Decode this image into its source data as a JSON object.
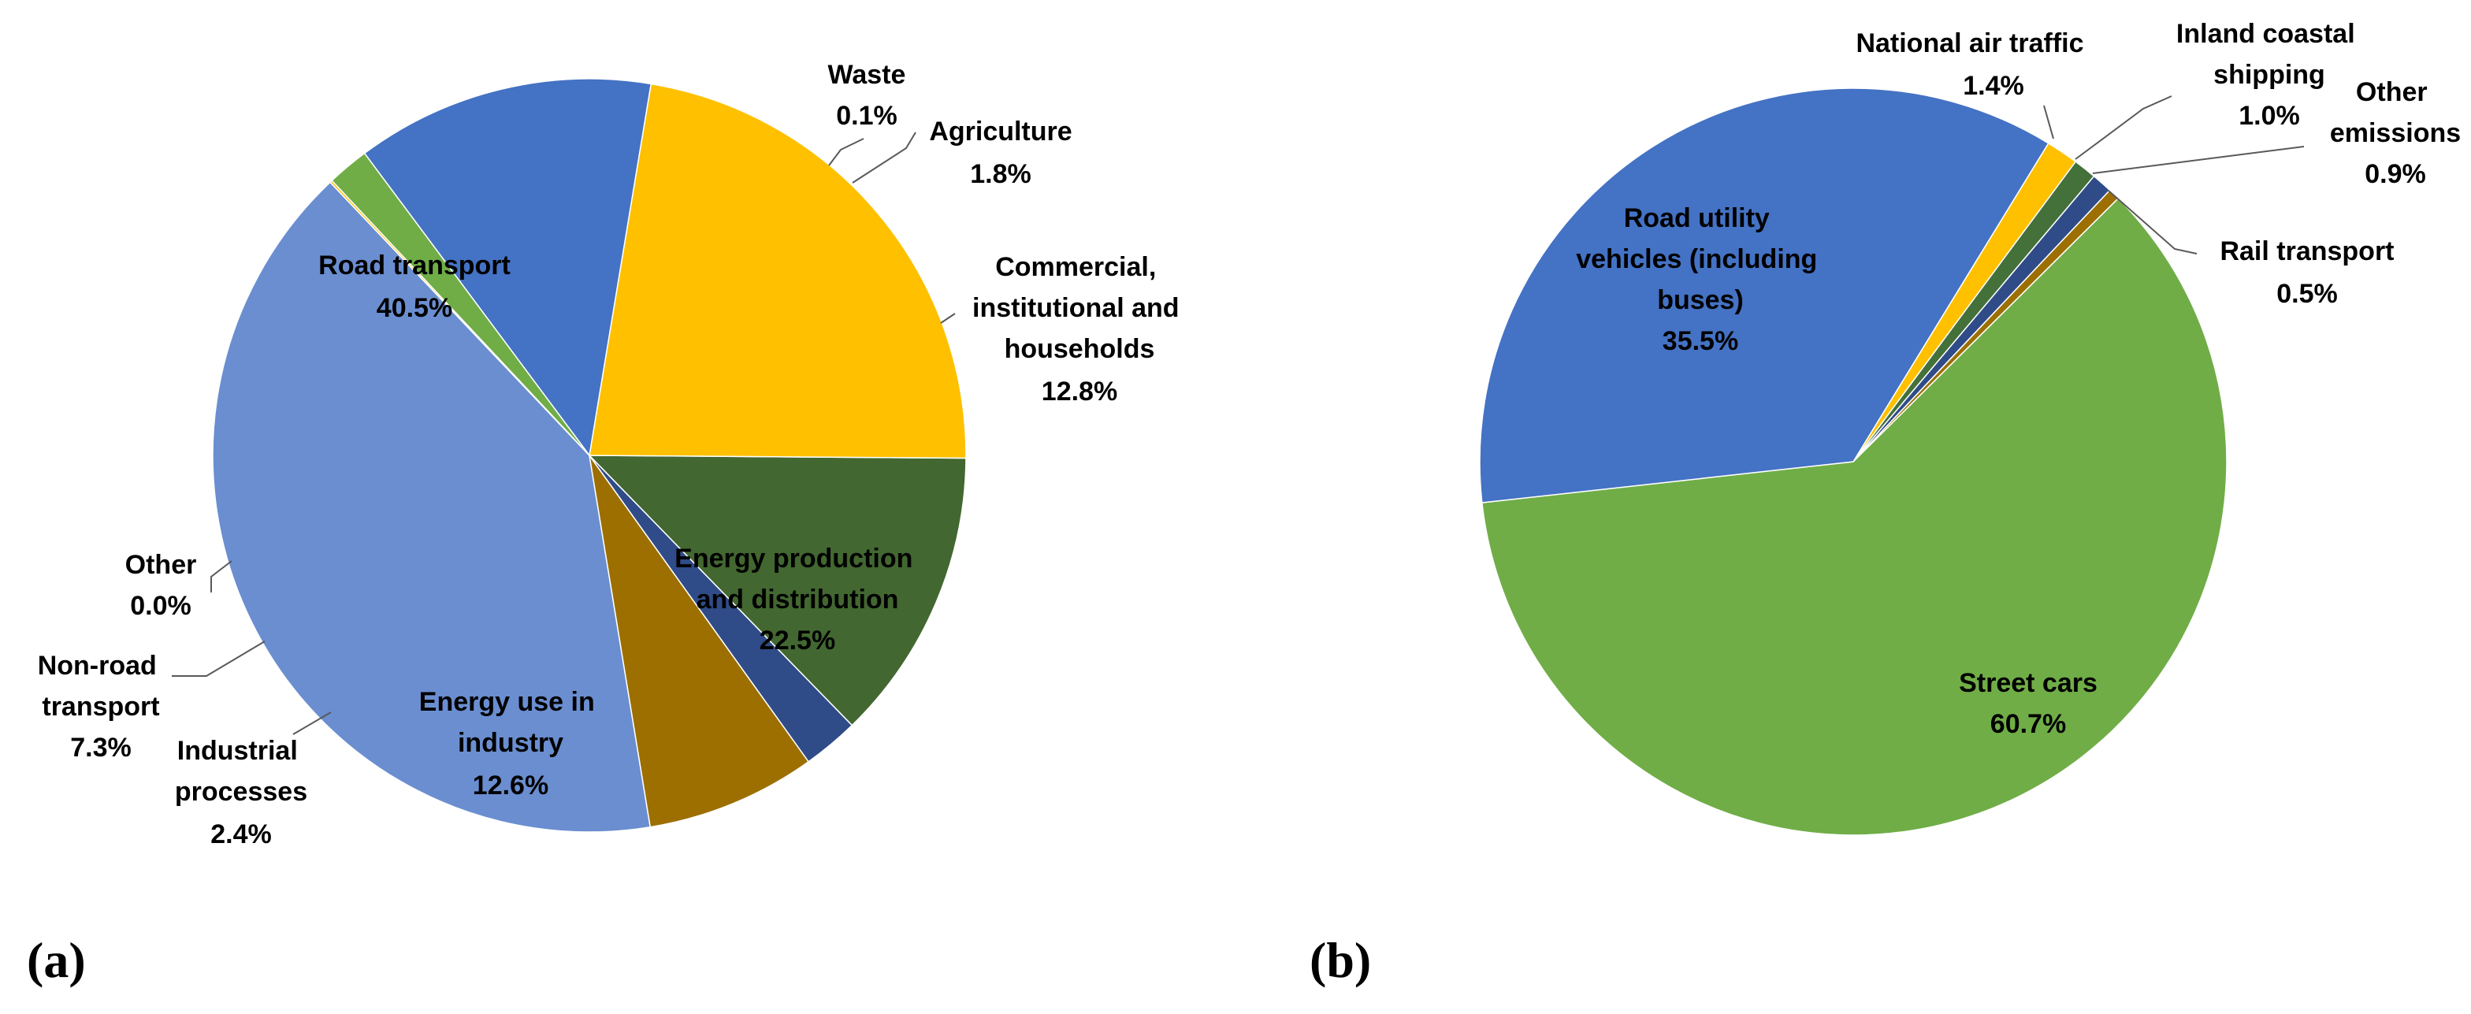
{
  "chart_data": [
    {
      "type": "pie",
      "panel_label": "(a)",
      "start_angle_deg": 133.5,
      "direction": "counterclockwise",
      "slices": [
        {
          "key": "road-transport",
          "label": "Road transport",
          "value": 40.5,
          "display": "40.5%",
          "color": "#6A8ED0"
        },
        {
          "key": "other",
          "label": "Other",
          "value": 0.0,
          "display": "0.0%",
          "color": "#8E7200"
        },
        {
          "key": "non-road-transport",
          "label": "Non-road transport",
          "value": 7.3,
          "display": "7.3%",
          "color": "#9C6F00"
        },
        {
          "key": "industrial-processes",
          "label": "Industrial processes",
          "value": 2.4,
          "display": "2.4%",
          "color": "#2F4C88"
        },
        {
          "key": "energy-use-industry",
          "label": "Energy use in industry",
          "value": 12.6,
          "display": "12.6%",
          "color": "#426730"
        },
        {
          "key": "energy-production",
          "label": "Energy production and distribution",
          "value": 22.5,
          "display": "22.5%",
          "color": "#FFC000"
        },
        {
          "key": "commercial",
          "label": "Commercial, institutional and households",
          "value": 12.8,
          "display": "12.8%",
          "color": "#4472C4"
        },
        {
          "key": "agriculture",
          "label": "Agriculture",
          "value": 1.8,
          "display": "1.8%",
          "color": "#70AD47"
        },
        {
          "key": "waste",
          "label": "Waste",
          "value": 0.1,
          "display": "0.1%",
          "color": "#FFC000"
        }
      ]
    },
    {
      "type": "pie",
      "panel_label": "(b)",
      "start_angle_deg": 58.5,
      "direction": "clockwise",
      "slices": [
        {
          "key": "national-air-traffic",
          "label": "National air traffic",
          "value": 1.4,
          "display": "1.4%",
          "color": "#FFC000"
        },
        {
          "key": "inland-coastal-shipping",
          "label": "Inland coastal shipping",
          "value": 1.0,
          "display": "1.0%",
          "color": "#44703A"
        },
        {
          "key": "other-emissions",
          "label": "Other emissions",
          "value": 0.9,
          "display": "0.9%",
          "color": "#2F4C88"
        },
        {
          "key": "rail-transport",
          "label": "Rail transport",
          "value": 0.5,
          "display": "0.5%",
          "color": "#9C6F00"
        },
        {
          "key": "street-cars",
          "label": "Street cars",
          "value": 60.7,
          "display": "60.7%",
          "color": "#70AD47"
        },
        {
          "key": "road-utility-vehicles",
          "label": "Road utility vehicles (including buses)",
          "value": 35.5,
          "display": "35.5%",
          "color": "#4472C4"
        }
      ]
    }
  ]
}
